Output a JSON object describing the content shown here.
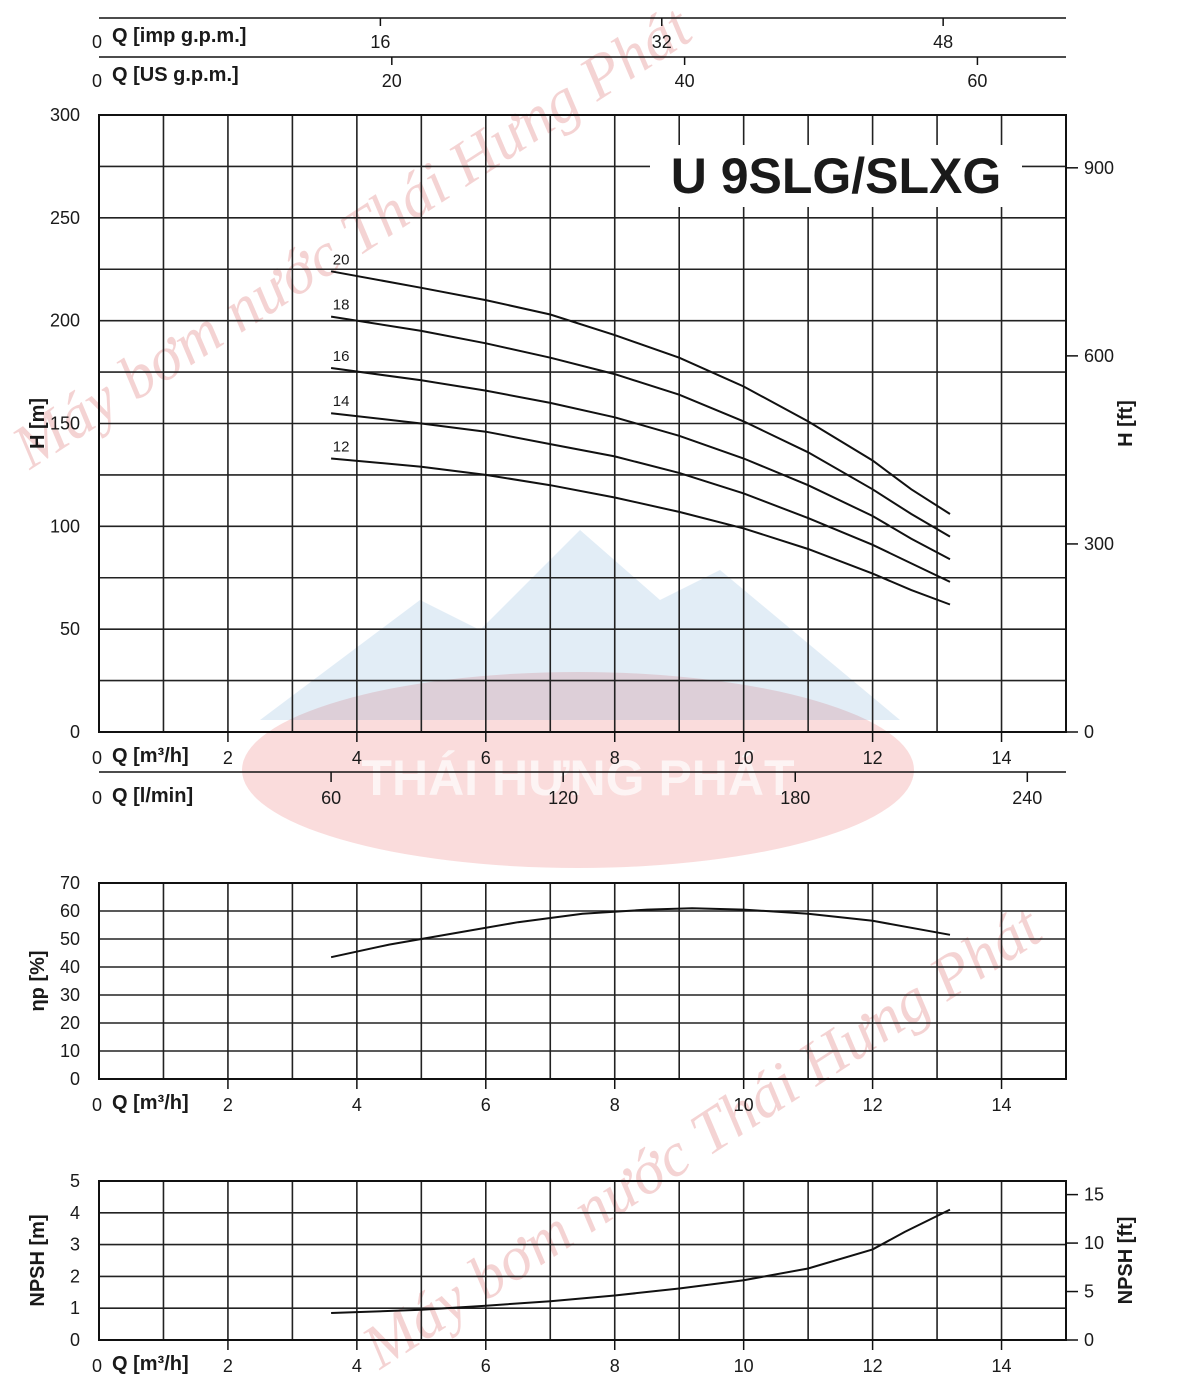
{
  "chart_data": [
    {
      "type": "line",
      "title": "U 9SLG/SLXG",
      "top_axes": [
        {
          "label": "Q [imp g.p.m.]",
          "zero": "0",
          "ticks": [
            "16",
            "32",
            "48"
          ]
        },
        {
          "label": "Q [US g.p.m.]",
          "zero": "0",
          "ticks": [
            "20",
            "40",
            "60"
          ]
        }
      ],
      "bottom_axes": [
        {
          "label": "Q [m³/h]",
          "zero": "0",
          "ticks": [
            "2",
            "4",
            "6",
            "8",
            "10",
            "12",
            "14"
          ]
        },
        {
          "label": "Q [l/min]",
          "zero": "0",
          "ticks": [
            "60",
            "120",
            "180",
            "240"
          ]
        }
      ],
      "ylabel": "H [m]",
      "ylabel_right": "H [ft]",
      "yticks": [
        "0",
        "50",
        "100",
        "150",
        "200",
        "250",
        "300"
      ],
      "yticks_right": [
        "0",
        "300",
        "600",
        "900"
      ],
      "xlim": [
        0,
        15
      ],
      "ylim": [
        0,
        300
      ],
      "grid": true,
      "series": [
        {
          "name": "20",
          "points": [
            [
              3.6,
              224
            ],
            [
              5,
              216
            ],
            [
              6,
              210
            ],
            [
              7,
              203
            ],
            [
              8,
              193
            ],
            [
              9,
              182
            ],
            [
              10,
              168
            ],
            [
              11,
              151
            ],
            [
              12,
              132
            ],
            [
              12.6,
              118
            ],
            [
              13.2,
              106
            ]
          ]
        },
        {
          "name": "18",
          "points": [
            [
              3.6,
              202
            ],
            [
              5,
              195
            ],
            [
              6,
              189
            ],
            [
              7,
              182
            ],
            [
              8,
              174
            ],
            [
              9,
              164
            ],
            [
              10,
              151
            ],
            [
              11,
              136
            ],
            [
              12,
              118
            ],
            [
              12.6,
              106
            ],
            [
              13.2,
              95
            ]
          ]
        },
        {
          "name": "16",
          "points": [
            [
              3.6,
              177
            ],
            [
              5,
              171
            ],
            [
              6,
              166
            ],
            [
              7,
              160
            ],
            [
              8,
              153
            ],
            [
              9,
              144
            ],
            [
              10,
              133
            ],
            [
              11,
              120
            ],
            [
              12,
              105
            ],
            [
              12.6,
              94
            ],
            [
              13.2,
              84
            ]
          ]
        },
        {
          "name": "14",
          "points": [
            [
              3.6,
              155
            ],
            [
              5,
              150
            ],
            [
              6,
              146
            ],
            [
              7,
              140
            ],
            [
              8,
              134
            ],
            [
              9,
              126
            ],
            [
              10,
              116
            ],
            [
              11,
              104
            ],
            [
              12,
              91
            ],
            [
              12.6,
              82
            ],
            [
              13.2,
              73
            ]
          ]
        },
        {
          "name": "12",
          "points": [
            [
              3.6,
              133
            ],
            [
              5,
              129
            ],
            [
              6,
              125
            ],
            [
              7,
              120
            ],
            [
              8,
              114
            ],
            [
              9,
              107
            ],
            [
              10,
              99
            ],
            [
              11,
              89
            ],
            [
              12,
              77
            ],
            [
              12.6,
              69
            ],
            [
              13.2,
              62
            ]
          ]
        }
      ]
    },
    {
      "type": "line",
      "ylabel": "ηp [%]",
      "yticks": [
        "0",
        "10",
        "20",
        "30",
        "40",
        "50",
        "60",
        "70"
      ],
      "bottom_axes": [
        {
          "label": "Q [m³/h]",
          "zero": "0",
          "ticks": [
            "2",
            "4",
            "6",
            "8",
            "10",
            "12",
            "14"
          ]
        }
      ],
      "xlim": [
        0,
        15
      ],
      "ylim": [
        0,
        70
      ],
      "grid": true,
      "series": [
        {
          "points": [
            [
              3.6,
              43.5
            ],
            [
              4.5,
              48
            ],
            [
              5.5,
              52
            ],
            [
              6.5,
              56
            ],
            [
              7.5,
              59
            ],
            [
              8.5,
              60.5
            ],
            [
              9.2,
              61
            ],
            [
              10,
              60.5
            ],
            [
              11,
              59
            ],
            [
              12,
              56.5
            ],
            [
              13.2,
              51.5
            ]
          ]
        }
      ]
    },
    {
      "type": "line",
      "ylabel": "NPSH [m]",
      "ylabel_right": "NPSH [ft]",
      "yticks": [
        "0",
        "1",
        "2",
        "3",
        "4",
        "5"
      ],
      "yticks_right": [
        "0",
        "5",
        "10",
        "15"
      ],
      "bottom_axes": [
        {
          "label": "Q [m³/h]",
          "zero": "0",
          "ticks": [
            "2",
            "4",
            "6",
            "8",
            "10",
            "12",
            "14"
          ]
        }
      ],
      "xlim": [
        0,
        15
      ],
      "ylim": [
        0,
        5
      ],
      "grid": true,
      "series": [
        {
          "points": [
            [
              3.6,
              0.85
            ],
            [
              5,
              0.95
            ],
            [
              6,
              1.08
            ],
            [
              7,
              1.22
            ],
            [
              8,
              1.4
            ],
            [
              9,
              1.62
            ],
            [
              10,
              1.88
            ],
            [
              11,
              2.25
            ],
            [
              12,
              2.85
            ],
            [
              12.5,
              3.4
            ],
            [
              13.2,
              4.1
            ]
          ]
        }
      ]
    }
  ],
  "watermark": {
    "text": "Máy bơm nước Thái Hưng Phát",
    "logo_text": "THÁI HƯNG PHÁT",
    "colors": {
      "red": "#e23b3b",
      "blue": "#4a90c8"
    }
  }
}
